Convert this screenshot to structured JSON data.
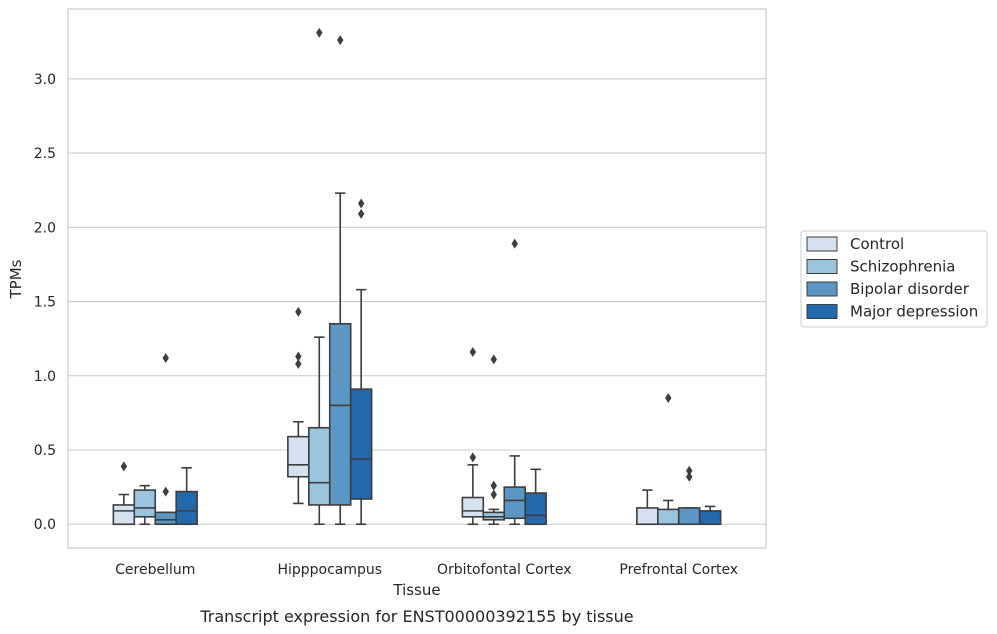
{
  "chart_data": {
    "type": "box",
    "xlabel": "Tissue",
    "ylabel": "TPMs",
    "caption": "Transcript expression for ENST00000392155 by tissue",
    "categories": [
      "Cerebellum",
      "Hipppocampus",
      "Orbitofontal Cortex",
      "Prefrontal Cortex"
    ],
    "yticks": [
      "0.0",
      "0.5",
      "1.0",
      "1.5",
      "2.0",
      "2.5",
      "3.0"
    ],
    "ylim": [
      -0.16,
      3.47
    ],
    "grid": true,
    "legend_position": "right",
    "series": [
      {
        "name": "Control",
        "color": "#d4e2f0",
        "boxes": [
          {
            "whislo": 0.0,
            "q1": 0.0,
            "med": 0.09,
            "q3": 0.13,
            "whishi": 0.2,
            "fliers": [
              0.39
            ]
          },
          {
            "whislo": 0.14,
            "q1": 0.32,
            "med": 0.4,
            "q3": 0.59,
            "whishi": 0.69,
            "fliers": [
              1.08,
              1.13,
              1.43
            ]
          },
          {
            "whislo": 0.0,
            "q1": 0.05,
            "med": 0.09,
            "q3": 0.18,
            "whishi": 0.4,
            "fliers": [
              0.45,
              1.16
            ]
          },
          {
            "whislo": 0.0,
            "q1": 0.0,
            "med": 0.0,
            "q3": 0.11,
            "whishi": 0.23,
            "fliers": []
          }
        ]
      },
      {
        "name": "Schizophrenia",
        "color": "#9ac4de",
        "boxes": [
          {
            "whislo": 0.0,
            "q1": 0.05,
            "med": 0.11,
            "q3": 0.23,
            "whishi": 0.26,
            "fliers": []
          },
          {
            "whislo": 0.0,
            "q1": 0.13,
            "med": 0.28,
            "q3": 0.65,
            "whishi": 1.26,
            "fliers": [
              3.31
            ]
          },
          {
            "whislo": 0.0,
            "q1": 0.03,
            "med": 0.05,
            "q3": 0.08,
            "whishi": 0.1,
            "fliers": [
              0.2,
              0.26,
              1.11
            ]
          },
          {
            "whislo": 0.0,
            "q1": 0.0,
            "med": 0.0,
            "q3": 0.1,
            "whishi": 0.16,
            "fliers": [
              0.85
            ]
          }
        ]
      },
      {
        "name": "Bipolar disorder",
        "color": "#5a97c4",
        "boxes": [
          {
            "whislo": 0.0,
            "q1": 0.0,
            "med": 0.03,
            "q3": 0.08,
            "whishi": 0.08,
            "fliers": [
              0.22,
              1.12
            ]
          },
          {
            "whislo": 0.0,
            "q1": 0.13,
            "med": 0.8,
            "q3": 1.35,
            "whishi": 2.23,
            "fliers": [
              3.26
            ]
          },
          {
            "whislo": 0.0,
            "q1": 0.04,
            "med": 0.16,
            "q3": 0.25,
            "whishi": 0.46,
            "fliers": [
              1.89
            ]
          },
          {
            "whislo": 0.0,
            "q1": 0.0,
            "med": 0.0,
            "q3": 0.11,
            "whishi": 0.11,
            "fliers": [
              0.32,
              0.36
            ]
          }
        ]
      },
      {
        "name": "Major depression",
        "color": "#2468ac",
        "boxes": [
          {
            "whislo": 0.0,
            "q1": 0.0,
            "med": 0.09,
            "q3": 0.22,
            "whishi": 0.38,
            "fliers": []
          },
          {
            "whislo": 0.0,
            "q1": 0.17,
            "med": 0.44,
            "q3": 0.91,
            "whishi": 1.58,
            "fliers": [
              2.09,
              2.16
            ]
          },
          {
            "whislo": 0.0,
            "q1": 0.0,
            "med": 0.06,
            "q3": 0.21,
            "whishi": 0.37,
            "fliers": []
          },
          {
            "whislo": 0.0,
            "q1": 0.0,
            "med": 0.0,
            "q3": 0.09,
            "whishi": 0.12,
            "fliers": []
          }
        ]
      }
    ]
  }
}
